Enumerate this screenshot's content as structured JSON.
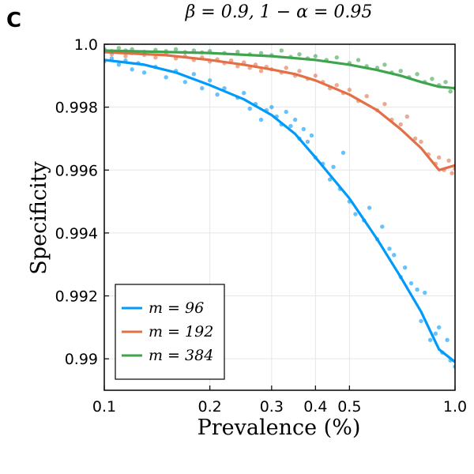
{
  "panel_label": "C",
  "chart_data": {
    "type": "scatter",
    "title": "β = 0.9, 1 − α = 0.95",
    "xlabel": "Prevalence (%)",
    "ylabel": "Specificity",
    "x_scale": "log",
    "xlim": [
      0.1,
      1.0
    ],
    "ylim": [
      0.989,
      1.0
    ],
    "x_ticks": [
      0.1,
      0.2,
      0.3,
      0.4,
      0.5,
      1.0
    ],
    "x_tick_labels": [
      "0.1",
      "0.2",
      "0.3",
      "0.4",
      "0.5",
      "1.0"
    ],
    "y_ticks": [
      0.99,
      0.992,
      0.994,
      0.996,
      0.998,
      1.0
    ],
    "y_tick_labels": [
      "0.99",
      "0.992",
      "0.994",
      "0.996",
      "0.998",
      "1.0"
    ],
    "grid": true,
    "legend_position": "bottom-left",
    "series": [
      {
        "name": "m = 96",
        "color": "#009AFA",
        "curve": [
          [
            0.1,
            0.9995
          ],
          [
            0.13,
            0.99935
          ],
          [
            0.16,
            0.9991
          ],
          [
            0.2,
            0.9987
          ],
          [
            0.25,
            0.99825
          ],
          [
            0.3,
            0.99775
          ],
          [
            0.35,
            0.99715
          ],
          [
            0.4,
            0.9964
          ],
          [
            0.5,
            0.9951
          ],
          [
            0.6,
            0.9938
          ],
          [
            0.7,
            0.9926
          ],
          [
            0.8,
            0.9915
          ],
          [
            0.9,
            0.9903
          ],
          [
            1.0,
            0.9899
          ]
        ],
        "points": [
          [
            0.1,
            0.99945
          ],
          [
            0.105,
            0.99955
          ],
          [
            0.11,
            0.99935
          ],
          [
            0.115,
            0.99948
          ],
          [
            0.12,
            0.9992
          ],
          [
            0.125,
            0.9994
          ],
          [
            0.13,
            0.9991
          ],
          [
            0.14,
            0.99928
          ],
          [
            0.15,
            0.99895
          ],
          [
            0.16,
            0.99915
          ],
          [
            0.17,
            0.9988
          ],
          [
            0.18,
            0.99905
          ],
          [
            0.19,
            0.9986
          ],
          [
            0.2,
            0.99885
          ],
          [
            0.21,
            0.9984
          ],
          [
            0.22,
            0.9986
          ],
          [
            0.24,
            0.9983
          ],
          [
            0.25,
            0.99845
          ],
          [
            0.26,
            0.99795
          ],
          [
            0.27,
            0.9981
          ],
          [
            0.28,
            0.9976
          ],
          [
            0.29,
            0.9979
          ],
          [
            0.3,
            0.998
          ],
          [
            0.31,
            0.9977
          ],
          [
            0.32,
            0.99745
          ],
          [
            0.33,
            0.99785
          ],
          [
            0.34,
            0.9974
          ],
          [
            0.35,
            0.9976
          ],
          [
            0.36,
            0.997
          ],
          [
            0.37,
            0.9973
          ],
          [
            0.38,
            0.9969
          ],
          [
            0.39,
            0.9971
          ],
          [
            0.4,
            0.9964
          ],
          [
            0.42,
            0.9962
          ],
          [
            0.44,
            0.9957
          ],
          [
            0.45,
            0.9961
          ],
          [
            0.47,
            0.9954
          ],
          [
            0.48,
            0.99655
          ],
          [
            0.5,
            0.995
          ],
          [
            0.52,
            0.9946
          ],
          [
            0.55,
            0.9944
          ],
          [
            0.57,
            0.9948
          ],
          [
            0.6,
            0.9938
          ],
          [
            0.62,
            0.9942
          ],
          [
            0.65,
            0.9935
          ],
          [
            0.67,
            0.9933
          ],
          [
            0.7,
            0.9926
          ],
          [
            0.72,
            0.9929
          ],
          [
            0.75,
            0.9924
          ],
          [
            0.78,
            0.9922
          ],
          [
            0.8,
            0.9912
          ],
          [
            0.82,
            0.9921
          ],
          [
            0.85,
            0.9906
          ],
          [
            0.88,
            0.9908
          ],
          [
            0.9,
            0.991
          ],
          [
            0.92,
            0.9902
          ],
          [
            0.95,
            0.9906
          ],
          [
            0.97,
            0.98995
          ],
          [
            1.0,
            0.98975
          ]
        ]
      },
      {
        "name": "m = 192",
        "color": "#E26F46",
        "curve": [
          [
            0.1,
            0.99975
          ],
          [
            0.15,
            0.99965
          ],
          [
            0.2,
            0.9995
          ],
          [
            0.25,
            0.99935
          ],
          [
            0.3,
            0.9992
          ],
          [
            0.35,
            0.99905
          ],
          [
            0.4,
            0.99885
          ],
          [
            0.5,
            0.9984
          ],
          [
            0.6,
            0.9979
          ],
          [
            0.7,
            0.9973
          ],
          [
            0.8,
            0.9967
          ],
          [
            0.9,
            0.996
          ],
          [
            1.0,
            0.99615
          ]
        ],
        "points": [
          [
            0.1,
            0.9998
          ],
          [
            0.105,
            0.99968
          ],
          [
            0.11,
            0.99975
          ],
          [
            0.115,
            0.99962
          ],
          [
            0.12,
            0.99972
          ],
          [
            0.13,
            0.99966
          ],
          [
            0.14,
            0.99958
          ],
          [
            0.15,
            0.99968
          ],
          [
            0.16,
            0.99955
          ],
          [
            0.17,
            0.99962
          ],
          [
            0.18,
            0.9995
          ],
          [
            0.19,
            0.99958
          ],
          [
            0.2,
            0.99945
          ],
          [
            0.21,
            0.99952
          ],
          [
            0.22,
            0.9994
          ],
          [
            0.23,
            0.99948
          ],
          [
            0.24,
            0.9993
          ],
          [
            0.25,
            0.99942
          ],
          [
            0.26,
            0.99925
          ],
          [
            0.27,
            0.99935
          ],
          [
            0.28,
            0.99915
          ],
          [
            0.29,
            0.99928
          ],
          [
            0.3,
            0.9992
          ],
          [
            0.32,
            0.9991
          ],
          [
            0.33,
            0.99925
          ],
          [
            0.35,
            0.999
          ],
          [
            0.36,
            0.99915
          ],
          [
            0.38,
            0.9989
          ],
          [
            0.4,
            0.999
          ],
          [
            0.42,
            0.9988
          ],
          [
            0.44,
            0.9986
          ],
          [
            0.46,
            0.9987
          ],
          [
            0.48,
            0.99845
          ],
          [
            0.5,
            0.99855
          ],
          [
            0.53,
            0.9982
          ],
          [
            0.56,
            0.99835
          ],
          [
            0.6,
            0.9979
          ],
          [
            0.63,
            0.9981
          ],
          [
            0.66,
            0.9976
          ],
          [
            0.7,
            0.99745
          ],
          [
            0.73,
            0.9977
          ],
          [
            0.77,
            0.997
          ],
          [
            0.8,
            0.9969
          ],
          [
            0.84,
            0.9965
          ],
          [
            0.88,
            0.9962
          ],
          [
            0.9,
            0.9964
          ],
          [
            0.93,
            0.996
          ],
          [
            0.96,
            0.9963
          ],
          [
            0.98,
            0.9959
          ],
          [
            1.0,
            0.99605
          ]
        ]
      },
      {
        "name": "m = 384",
        "color": "#3EA44E",
        "curve": [
          [
            0.1,
            0.9998
          ],
          [
            0.2,
            0.99972
          ],
          [
            0.3,
            0.99962
          ],
          [
            0.4,
            0.9995
          ],
          [
            0.5,
            0.99935
          ],
          [
            0.6,
            0.99918
          ],
          [
            0.7,
            0.999
          ],
          [
            0.8,
            0.9988
          ],
          [
            0.9,
            0.99865
          ],
          [
            1.0,
            0.9986
          ]
        ],
        "points": [
          [
            0.1,
            0.99985
          ],
          [
            0.105,
            0.99978
          ],
          [
            0.11,
            0.99988
          ],
          [
            0.115,
            0.9998
          ],
          [
            0.12,
            0.99984
          ],
          [
            0.13,
            0.99976
          ],
          [
            0.14,
            0.99982
          ],
          [
            0.15,
            0.99978
          ],
          [
            0.16,
            0.99984
          ],
          [
            0.17,
            0.99975
          ],
          [
            0.18,
            0.9998
          ],
          [
            0.19,
            0.99974
          ],
          [
            0.2,
            0.99978
          ],
          [
            0.22,
            0.99972
          ],
          [
            0.24,
            0.99976
          ],
          [
            0.26,
            0.99968
          ],
          [
            0.28,
            0.99972
          ],
          [
            0.3,
            0.99965
          ],
          [
            0.32,
            0.9998
          ],
          [
            0.34,
            0.9996
          ],
          [
            0.36,
            0.99968
          ],
          [
            0.38,
            0.99955
          ],
          [
            0.4,
            0.99962
          ],
          [
            0.43,
            0.9995
          ],
          [
            0.46,
            0.99958
          ],
          [
            0.5,
            0.9994
          ],
          [
            0.53,
            0.9995
          ],
          [
            0.56,
            0.9993
          ],
          [
            0.6,
            0.99925
          ],
          [
            0.63,
            0.99935
          ],
          [
            0.66,
            0.9991
          ],
          [
            0.7,
            0.99915
          ],
          [
            0.74,
            0.99895
          ],
          [
            0.78,
            0.99905
          ],
          [
            0.82,
            0.9988
          ],
          [
            0.86,
            0.9989
          ],
          [
            0.9,
            0.9987
          ],
          [
            0.94,
            0.9988
          ],
          [
            0.97,
            0.9985
          ],
          [
            1.0,
            0.9986
          ]
        ]
      }
    ]
  }
}
